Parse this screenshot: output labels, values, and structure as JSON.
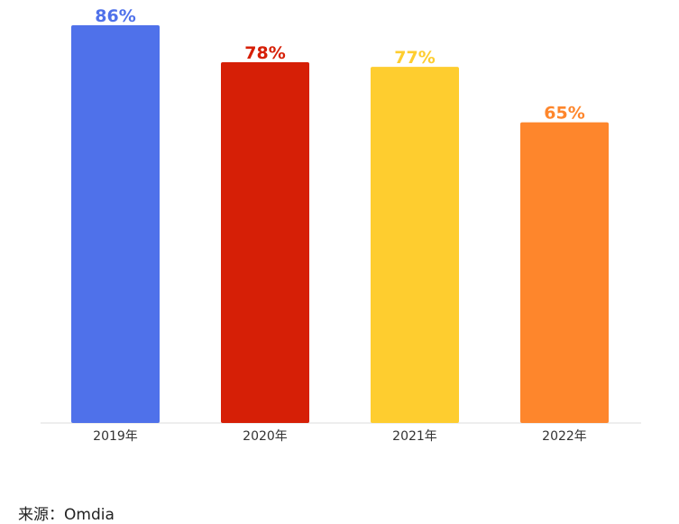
{
  "chart_data": {
    "type": "bar",
    "categories": [
      "2019年",
      "2020年",
      "2021年",
      "2022年"
    ],
    "values": [
      86,
      78,
      77,
      65
    ],
    "data_labels": [
      "86%",
      "78%",
      "77%",
      "65%"
    ],
    "colors": [
      "#4f71ea",
      "#d61f06",
      "#fecd2f",
      "#fe862c"
    ],
    "title": "",
    "xlabel": "",
    "ylabel": "",
    "ylim": [
      0,
      86
    ],
    "grid": false,
    "legend": "none"
  },
  "source": {
    "text": "来源：Omdia"
  }
}
